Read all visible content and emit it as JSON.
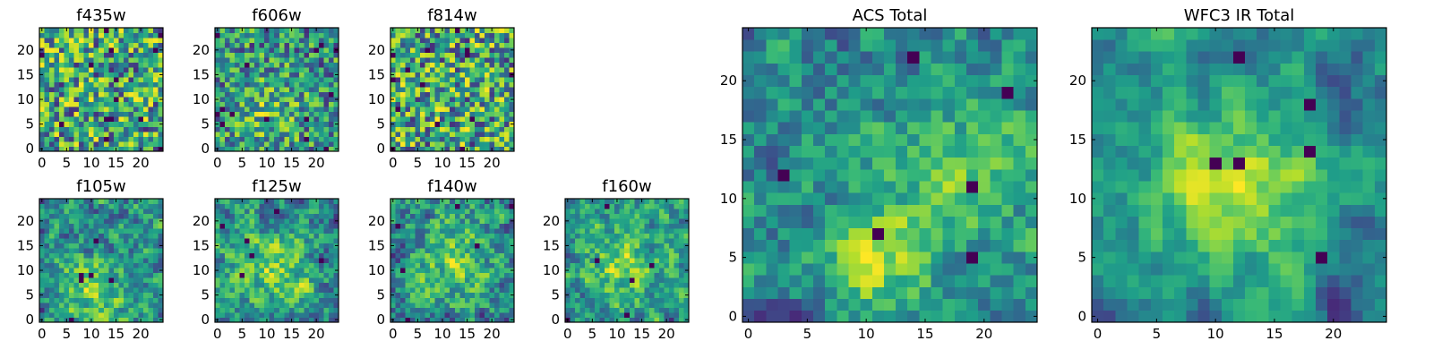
{
  "chart_data": [
    {
      "type": "heatmap",
      "title": "f435w",
      "xticks": [
        0,
        5,
        10,
        15,
        20
      ],
      "yticks": [
        0,
        5,
        10,
        15,
        20
      ],
      "xlim": [
        -0.5,
        24.5
      ],
      "ylim": [
        -0.5,
        24.5
      ],
      "grid_size": 25,
      "colormap": "viridis",
      "seed": 11,
      "smooth": 0,
      "blobs": []
    },
    {
      "type": "heatmap",
      "title": "f606w",
      "xticks": [
        0,
        5,
        10,
        15,
        20
      ],
      "yticks": [
        0,
        5,
        10,
        15,
        20
      ],
      "xlim": [
        -0.5,
        24.5
      ],
      "ylim": [
        -0.5,
        24.5
      ],
      "grid_size": 25,
      "colormap": "viridis",
      "seed": 23,
      "smooth": 0,
      "blobs": [
        [
          10,
          8,
          5,
          0.25
        ]
      ]
    },
    {
      "type": "heatmap",
      "title": "f814w",
      "xticks": [
        0,
        5,
        10,
        15,
        20
      ],
      "yticks": [
        0,
        5,
        10,
        15,
        20
      ],
      "xlim": [
        -0.5,
        24.5
      ],
      "ylim": [
        -0.5,
        24.5
      ],
      "grid_size": 25,
      "colormap": "viridis",
      "seed": 37,
      "smooth": 0,
      "blobs": []
    },
    {
      "type": "heatmap",
      "title": "f105w",
      "xticks": [
        0,
        5,
        10,
        15,
        20
      ],
      "yticks": [
        0,
        5,
        10,
        15,
        20
      ],
      "xlim": [
        -0.5,
        24.5
      ],
      "ylim": [
        -0.5,
        24.5
      ],
      "grid_size": 25,
      "colormap": "viridis",
      "seed": 41,
      "smooth": 1,
      "blobs": [
        [
          10,
          6,
          5,
          0.35
        ]
      ]
    },
    {
      "type": "heatmap",
      "title": "f125w",
      "xticks": [
        0,
        5,
        10,
        15,
        20
      ],
      "yticks": [
        0,
        5,
        10,
        15,
        20
      ],
      "xlim": [
        -0.5,
        24.5
      ],
      "ylim": [
        -0.5,
        24.5
      ],
      "grid_size": 25,
      "colormap": "viridis",
      "seed": 53,
      "smooth": 1,
      "blobs": [
        [
          12,
          10,
          5,
          0.3
        ]
      ]
    },
    {
      "type": "heatmap",
      "title": "f140w",
      "xticks": [
        0,
        5,
        10,
        15,
        20
      ],
      "yticks": [
        0,
        5,
        10,
        15,
        20
      ],
      "xlim": [
        -0.5,
        24.5
      ],
      "ylim": [
        -0.5,
        24.5
      ],
      "grid_size": 25,
      "colormap": "viridis",
      "seed": 67,
      "smooth": 1,
      "blobs": [
        [
          12,
          12,
          6,
          0.3
        ]
      ]
    },
    {
      "type": "heatmap",
      "title": "f160w",
      "xticks": [
        0,
        5,
        10,
        15,
        20
      ],
      "yticks": [
        0,
        5,
        10,
        15,
        20
      ],
      "xlim": [
        -0.5,
        24.5
      ],
      "ylim": [
        -0.5,
        24.5
      ],
      "grid_size": 25,
      "colormap": "viridis",
      "seed": 79,
      "smooth": 1,
      "blobs": [
        [
          11,
          11,
          5,
          0.35
        ]
      ]
    },
    {
      "type": "heatmap",
      "title": "ACS Total",
      "xticks": [
        0,
        5,
        10,
        15,
        20
      ],
      "yticks": [
        0,
        5,
        10,
        15,
        20
      ],
      "xlim": [
        -0.5,
        24.5
      ],
      "ylim": [
        -0.5,
        24.5
      ],
      "grid_size": 25,
      "colormap": "viridis",
      "seed": 97,
      "smooth": 1,
      "blobs": [
        [
          11,
          4,
          3,
          0.45
        ],
        [
          17,
          12,
          5,
          0.3
        ]
      ]
    },
    {
      "type": "heatmap",
      "title": "WFC3 IR Total",
      "xticks": [
        0,
        5,
        10,
        15,
        20
      ],
      "yticks": [
        0,
        5,
        10,
        15,
        20
      ],
      "xlim": [
        -0.5,
        24.5
      ],
      "ylim": [
        -0.5,
        24.5
      ],
      "grid_size": 25,
      "colormap": "viridis",
      "seed": 131,
      "smooth": 2,
      "blobs": [
        [
          12,
          11,
          5,
          0.5
        ]
      ]
    }
  ]
}
